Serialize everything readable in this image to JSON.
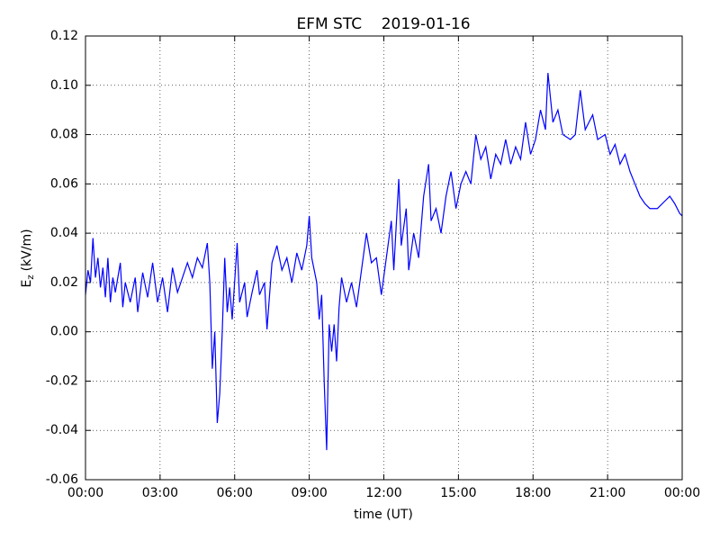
{
  "chart_data": {
    "type": "line",
    "title": "EFM STC    2019-01-16",
    "xlabel": "time (UT)",
    "ylabel": {
      "text": "E",
      "subscript": "z",
      "unit": "(kV/m)"
    },
    "xlim": [
      0,
      24
    ],
    "xticks": [
      {
        "value": 0,
        "label": "00:00"
      },
      {
        "value": 3,
        "label": "03:00"
      },
      {
        "value": 6,
        "label": "06:00"
      },
      {
        "value": 9,
        "label": "09:00"
      },
      {
        "value": 12,
        "label": "12:00"
      },
      {
        "value": 15,
        "label": "15:00"
      },
      {
        "value": 18,
        "label": "18:00"
      },
      {
        "value": 21,
        "label": "21:00"
      },
      {
        "value": 24,
        "label": "00:00"
      }
    ],
    "ylim": [
      -0.06,
      0.12
    ],
    "yticks": [
      -0.06,
      -0.04,
      -0.02,
      {
        "value": 0,
        "label": "0.00"
      },
      0.02,
      0.04,
      0.06,
      0.08,
      {
        "value": 0.1,
        "label": "0.10"
      },
      0.12
    ],
    "grid": true,
    "x": [
      0,
      0.1,
      0.2,
      0.3,
      0.4,
      0.5,
      0.6,
      0.7,
      0.8,
      0.9,
      1.0,
      1.1,
      1.2,
      1.4,
      1.5,
      1.6,
      1.8,
      2.0,
      2.1,
      2.3,
      2.5,
      2.7,
      2.9,
      3.1,
      3.3,
      3.5,
      3.7,
      3.9,
      4.1,
      4.3,
      4.5,
      4.7,
      4.9,
      5.0,
      5.1,
      5.2,
      5.3,
      5.4,
      5.5,
      5.6,
      5.7,
      5.8,
      5.9,
      6.1,
      6.2,
      6.4,
      6.5,
      6.7,
      6.9,
      7.0,
      7.2,
      7.3,
      7.5,
      7.7,
      7.9,
      8.1,
      8.3,
      8.5,
      8.7,
      8.9,
      9.0,
      9.1,
      9.3,
      9.4,
      9.5,
      9.6,
      9.7,
      9.8,
      9.9,
      10.0,
      10.1,
      10.2,
      10.3,
      10.5,
      10.7,
      10.9,
      11.1,
      11.3,
      11.5,
      11.7,
      11.9,
      12.1,
      12.3,
      12.4,
      12.6,
      12.7,
      12.9,
      13.0,
      13.2,
      13.4,
      13.6,
      13.8,
      13.9,
      14.1,
      14.3,
      14.5,
      14.7,
      14.9,
      15.1,
      15.3,
      15.5,
      15.7,
      15.9,
      16.1,
      16.3,
      16.5,
      16.7,
      16.9,
      17.1,
      17.3,
      17.5,
      17.7,
      17.9,
      18.1,
      18.3,
      18.5,
      18.6,
      18.8,
      19.0,
      19.2,
      19.5,
      19.7,
      19.9,
      20.1,
      20.4,
      20.6,
      20.9,
      21.1,
      21.3,
      21.5,
      21.7,
      21.9,
      22.1,
      22.3,
      22.5,
      22.7,
      23.0,
      23.3,
      23.5,
      23.7,
      23.9,
      24
    ],
    "series": [
      {
        "name": "Ez",
        "color": "#0000ff",
        "values": [
          0.015,
          0.025,
          0.02,
          0.038,
          0.022,
          0.03,
          0.018,
          0.026,
          0.014,
          0.03,
          0.012,
          0.022,
          0.016,
          0.028,
          0.01,
          0.02,
          0.012,
          0.022,
          0.008,
          0.024,
          0.014,
          0.028,
          0.012,
          0.022,
          0.008,
          0.026,
          0.016,
          0.022,
          0.028,
          0.022,
          0.03,
          0.026,
          0.036,
          0.02,
          -0.015,
          0.0,
          -0.037,
          -0.025,
          0.0,
          0.03,
          0.008,
          0.018,
          0.005,
          0.036,
          0.012,
          0.02,
          0.006,
          0.016,
          0.025,
          0.015,
          0.02,
          0.001,
          0.028,
          0.035,
          0.025,
          0.03,
          0.02,
          0.032,
          0.025,
          0.035,
          0.047,
          0.03,
          0.02,
          0.005,
          0.015,
          -0.02,
          -0.048,
          0.003,
          -0.008,
          0.003,
          -0.012,
          0.01,
          0.022,
          0.012,
          0.02,
          0.01,
          0.025,
          0.04,
          0.028,
          0.03,
          0.015,
          0.03,
          0.045,
          0.025,
          0.062,
          0.035,
          0.05,
          0.025,
          0.04,
          0.03,
          0.055,
          0.068,
          0.045,
          0.05,
          0.04,
          0.055,
          0.065,
          0.05,
          0.06,
          0.065,
          0.06,
          0.08,
          0.07,
          0.075,
          0.062,
          0.072,
          0.068,
          0.078,
          0.068,
          0.075,
          0.07,
          0.085,
          0.072,
          0.078,
          0.09,
          0.082,
          0.105,
          0.085,
          0.09,
          0.08,
          0.078,
          0.08,
          0.098,
          0.082,
          0.088,
          0.078,
          0.08,
          0.072,
          0.076,
          0.068,
          0.072,
          0.065,
          0.06,
          0.055,
          0.052,
          0.05,
          0.05,
          0.053,
          0.055,
          0.052,
          0.048,
          0.047
        ]
      }
    ]
  }
}
